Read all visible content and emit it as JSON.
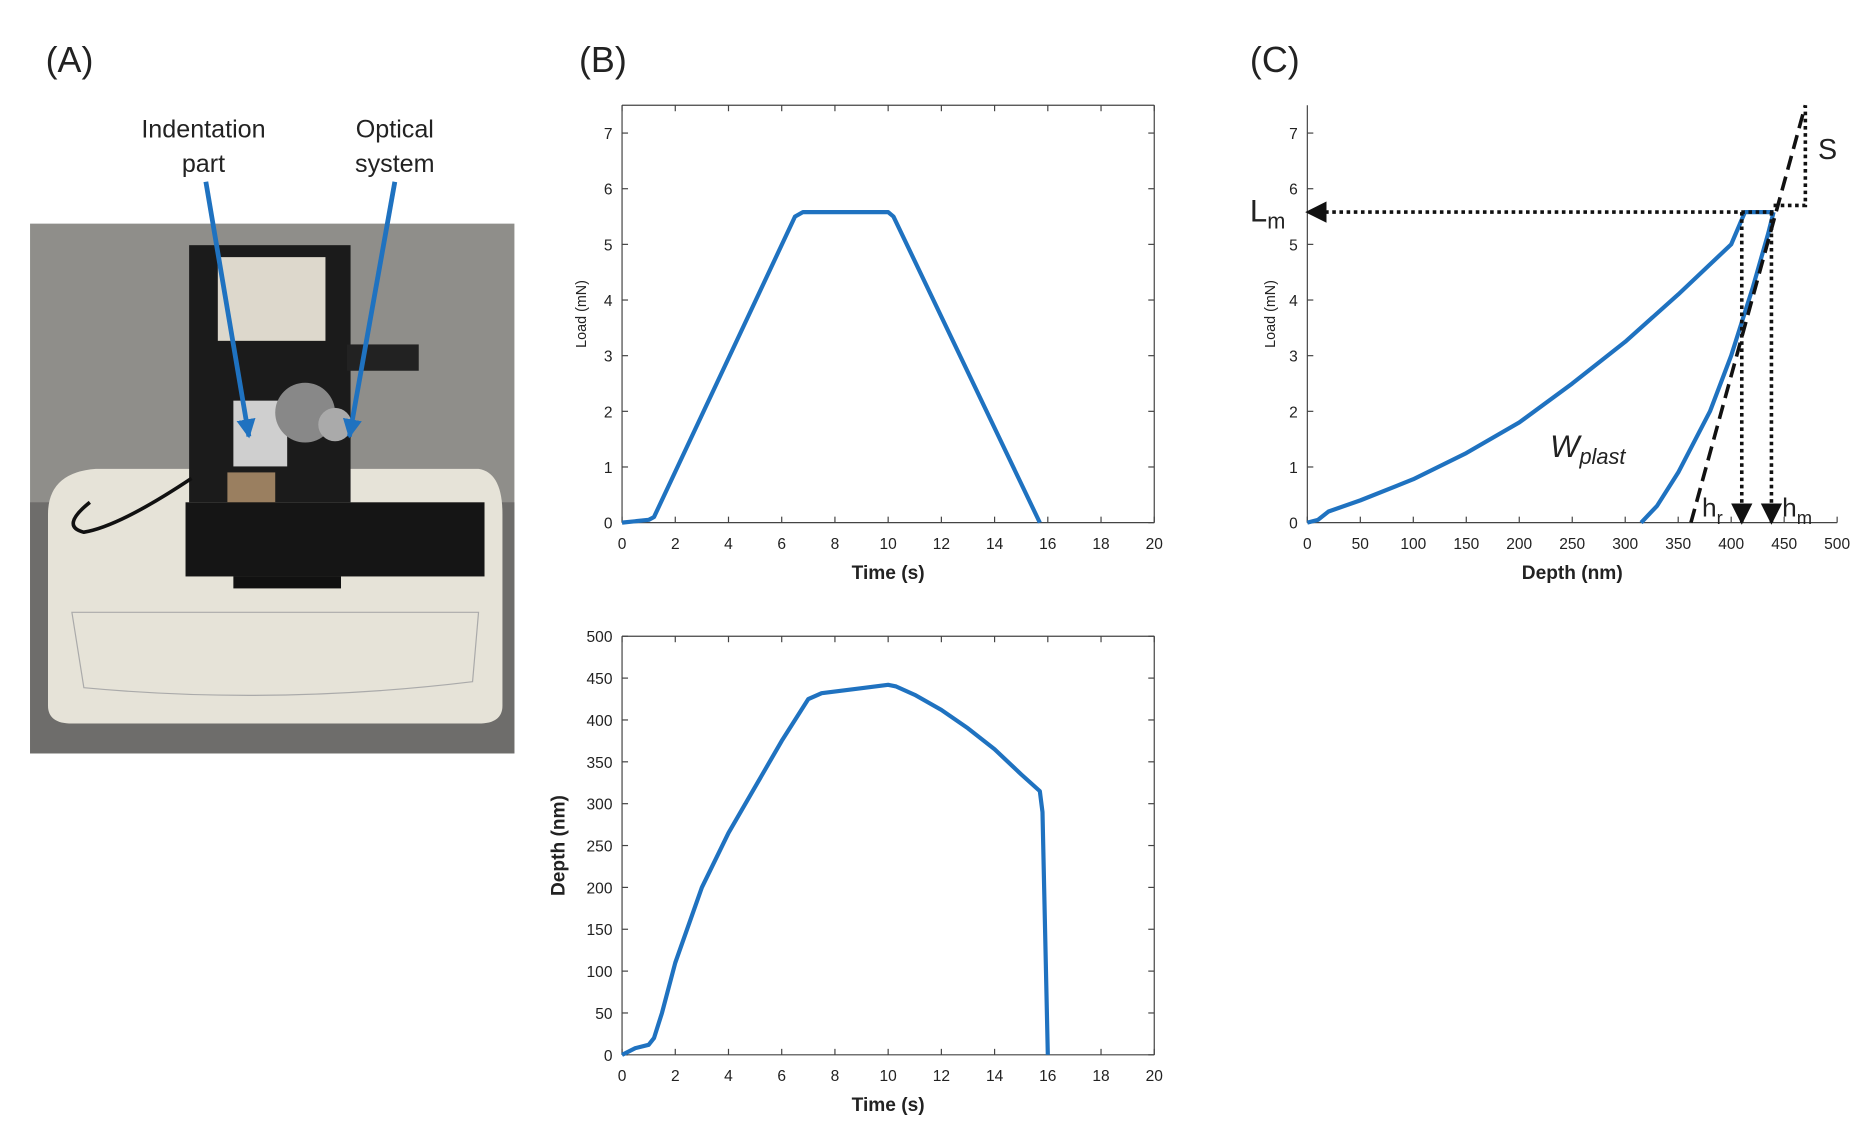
{
  "panels": {
    "labels": [
      "(A)",
      "(B)",
      "(C)"
    ],
    "photo_annotations": [
      [
        "Indentation",
        "part"
      ],
      [
        "Optical",
        "system"
      ]
    ]
  },
  "chart_data": [
    {
      "type": "line",
      "xlabel": "Time (s)",
      "ylabel": "Load (mN)",
      "xlim": [
        0,
        20
      ],
      "ylim": [
        0,
        7.5
      ],
      "xticks": [
        0,
        2,
        4,
        6,
        8,
        10,
        12,
        14,
        16,
        18,
        20
      ],
      "yticks": [
        0,
        1,
        2,
        3,
        4,
        5,
        6,
        7
      ],
      "box": true,
      "series": [
        {
          "color": "#1f72c0",
          "x": [
            0,
            1,
            1.2,
            6.5,
            6.8,
            10,
            10.2,
            15.7
          ],
          "values": [
            0,
            0.05,
            0.1,
            5.5,
            5.58,
            5.58,
            5.5,
            0
          ]
        }
      ]
    },
    {
      "type": "line",
      "xlabel": "Time (s)",
      "ylabel": "Depth (nm)",
      "xlim": [
        0,
        20
      ],
      "ylim": [
        0,
        500
      ],
      "xticks": [
        0,
        2,
        4,
        6,
        8,
        10,
        12,
        14,
        16,
        18,
        20
      ],
      "yticks": [
        0,
        50,
        100,
        150,
        200,
        250,
        300,
        350,
        400,
        450,
        500
      ],
      "box": true,
      "series": [
        {
          "color": "#1f72c0",
          "x": [
            0,
            0.5,
            1,
            1.2,
            1.5,
            2,
            3,
            4,
            5,
            6,
            7,
            7.5,
            9,
            10,
            10.3,
            11,
            12,
            13,
            14,
            15,
            15.7,
            15.8,
            16
          ],
          "values": [
            0,
            8,
            12,
            20,
            50,
            110,
            200,
            265,
            320,
            375,
            425,
            432,
            438,
            442,
            440,
            430,
            412,
            390,
            365,
            335,
            315,
            290,
            0
          ]
        }
      ]
    },
    {
      "type": "line",
      "xlabel": "Depth (nm)",
      "ylabel": "Load (mN)",
      "xlim": [
        0,
        500
      ],
      "ylim": [
        0,
        7.5
      ],
      "xticks": [
        0,
        50,
        100,
        150,
        200,
        250,
        300,
        350,
        400,
        450,
        500
      ],
      "yticks": [
        0,
        1,
        2,
        3,
        4,
        5,
        6,
        7
      ],
      "box": false,
      "series": [
        {
          "color": "#1f72c0",
          "x": [
            0,
            10,
            20,
            50,
            100,
            150,
            200,
            250,
            300,
            350,
            400,
            413,
            440
          ],
          "values": [
            0,
            0.05,
            0.2,
            0.4,
            0.78,
            1.25,
            1.8,
            2.5,
            3.25,
            4.1,
            5.0,
            5.58,
            5.58
          ]
        },
        {
          "color": "#1f72c0",
          "x": [
            315,
            330,
            350,
            380,
            400,
            420,
            435,
            440
          ],
          "values": [
            0,
            0.3,
            0.9,
            2,
            3,
            4.2,
            5.2,
            5.58
          ]
        }
      ],
      "guides": [
        {
          "style": "dotted",
          "arrow": true,
          "x": [
            440,
            0
          ],
          "values": [
            5.58,
            5.58
          ]
        },
        {
          "style": "dashed",
          "arrow": false,
          "x": [
            362,
            470
          ],
          "values": [
            0,
            7.5
          ]
        },
        {
          "style": "dotted",
          "arrow": false,
          "x": [
            440,
            470,
            470
          ],
          "values": [
            5.7,
            5.7,
            7.5
          ]
        },
        {
          "style": "dotted",
          "arrow": true,
          "x": [
            410,
            410
          ],
          "values": [
            5.58,
            0
          ]
        },
        {
          "style": "dotted",
          "arrow": true,
          "x": [
            438,
            438
          ],
          "values": [
            5.58,
            0
          ]
        }
      ],
      "annotations": [
        {
          "text": "L",
          "sub": "m"
        },
        {
          "text": "S"
        },
        {
          "text": "W",
          "sub": "plast",
          "italic": true
        },
        {
          "text": "h",
          "sub": "r"
        },
        {
          "text": "h",
          "sub": "m"
        }
      ]
    }
  ]
}
